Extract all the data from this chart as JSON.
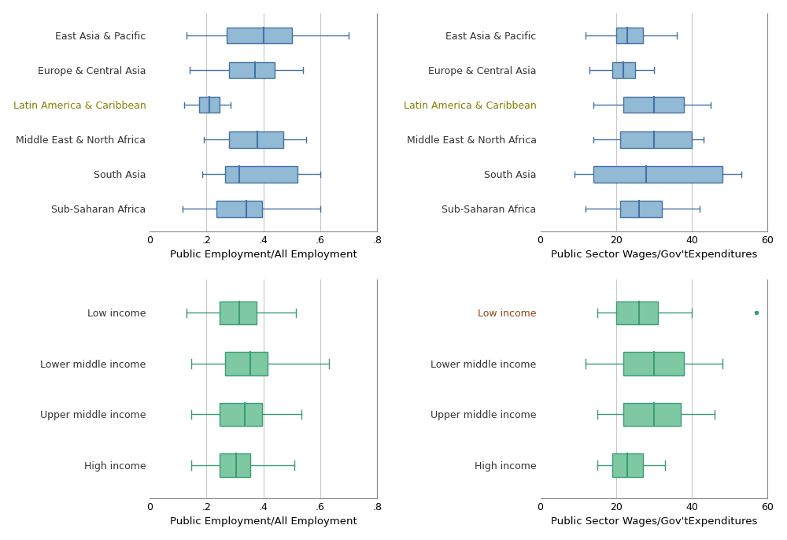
{
  "top_left": {
    "categories": [
      "East Asia & Pacific",
      "Europe & Central Asia",
      "Latin America & Caribbean",
      "Middle East & North Africa",
      "South Asia",
      "Sub-Saharan Africa"
    ],
    "boxes": [
      {
        "whislo": 0.13,
        "q1": 0.27,
        "med": 0.4,
        "q3": 0.5,
        "whishi": 0.7,
        "fliers": []
      },
      {
        "whislo": 0.14,
        "q1": 0.28,
        "med": 0.37,
        "q3": 0.44,
        "whishi": 0.54,
        "fliers": []
      },
      {
        "whislo": 0.12,
        "q1": 0.175,
        "med": 0.21,
        "q3": 0.245,
        "whishi": 0.285,
        "fliers": []
      },
      {
        "whislo": 0.19,
        "q1": 0.28,
        "med": 0.38,
        "q3": 0.47,
        "whishi": 0.55,
        "fliers": []
      },
      {
        "whislo": 0.185,
        "q1": 0.265,
        "med": 0.315,
        "q3": 0.52,
        "whishi": 0.6,
        "fliers": []
      },
      {
        "whislo": 0.115,
        "q1": 0.235,
        "med": 0.34,
        "q3": 0.395,
        "whishi": 0.6,
        "fliers": []
      }
    ],
    "xlabel": "Public Employment/All Employment",
    "xlim": [
      0,
      0.8
    ],
    "xticks": [
      0,
      0.2,
      0.4,
      0.6,
      0.8
    ],
    "xticklabels": [
      "0",
      ".2",
      ".4",
      ".6",
      ".8"
    ],
    "color": "#92BAD4",
    "edgecolor": "#4472A8",
    "mediancolor": "#4472A8",
    "special_label_idx": 2,
    "special_label_color": "#808000"
  },
  "top_right": {
    "categories": [
      "East Asia & Pacific",
      "Europe & Central Asia",
      "Latin America & Caribbean",
      "Middle East & North Africa",
      "South Asia",
      "Sub-Saharan Africa"
    ],
    "boxes": [
      {
        "whislo": 12,
        "q1": 20,
        "med": 23,
        "q3": 27,
        "whishi": 36,
        "fliers": []
      },
      {
        "whislo": 13,
        "q1": 19,
        "med": 22,
        "q3": 25,
        "whishi": 30,
        "fliers": []
      },
      {
        "whislo": 14,
        "q1": 22,
        "med": 30,
        "q3": 38,
        "whishi": 45,
        "fliers": []
      },
      {
        "whislo": 14,
        "q1": 21,
        "med": 30,
        "q3": 40,
        "whishi": 43,
        "fliers": []
      },
      {
        "whislo": 9,
        "q1": 14,
        "med": 28,
        "q3": 48,
        "whishi": 53,
        "fliers": []
      },
      {
        "whislo": 12,
        "q1": 21,
        "med": 26,
        "q3": 32,
        "whishi": 42,
        "fliers": []
      }
    ],
    "xlabel": "Public Sector Wages/Gov'tExpenditures",
    "xlim": [
      0,
      60
    ],
    "xticks": [
      0,
      20,
      40,
      60
    ],
    "xticklabels": [
      "0",
      "20",
      "40",
      "60"
    ],
    "color": "#92BAD4",
    "edgecolor": "#4472A8",
    "mediancolor": "#4472A8",
    "special_label_idx": 2,
    "special_label_color": "#808000"
  },
  "bottom_left": {
    "categories": [
      "Low income",
      "Lower middle income",
      "Upper middle income",
      "High income"
    ],
    "boxes": [
      {
        "whislo": 0.13,
        "q1": 0.245,
        "med": 0.315,
        "q3": 0.375,
        "whishi": 0.515,
        "fliers": []
      },
      {
        "whislo": 0.145,
        "q1": 0.265,
        "med": 0.355,
        "q3": 0.415,
        "whishi": 0.63,
        "fliers": []
      },
      {
        "whislo": 0.145,
        "q1": 0.245,
        "med": 0.335,
        "q3": 0.395,
        "whishi": 0.535,
        "fliers": []
      },
      {
        "whislo": 0.145,
        "q1": 0.245,
        "med": 0.305,
        "q3": 0.355,
        "whishi": 0.51,
        "fliers": []
      }
    ],
    "xlabel": "Public Employment/All Employment",
    "xlim": [
      0,
      0.8
    ],
    "xticks": [
      0,
      0.2,
      0.4,
      0.6,
      0.8
    ],
    "xticklabels": [
      "0",
      ".2",
      ".4",
      ".6",
      ".8"
    ],
    "color": "#7EC8A4",
    "edgecolor": "#3A9E72",
    "mediancolor": "#3A9E72",
    "special_label_idx": -1,
    "special_label_color": "#000000"
  },
  "bottom_right": {
    "categories": [
      "Low income",
      "Lower middle income",
      "Upper middle income",
      "High income"
    ],
    "boxes": [
      {
        "whislo": 15,
        "q1": 20,
        "med": 26,
        "q3": 31,
        "whishi": 40,
        "fliers": [
          57
        ]
      },
      {
        "whislo": 12,
        "q1": 22,
        "med": 30,
        "q3": 38,
        "whishi": 48,
        "fliers": []
      },
      {
        "whislo": 15,
        "q1": 22,
        "med": 30,
        "q3": 37,
        "whishi": 46,
        "fliers": []
      },
      {
        "whislo": 15,
        "q1": 19,
        "med": 23,
        "q3": 27,
        "whishi": 33,
        "fliers": []
      }
    ],
    "xlabel": "Public Sector Wages/Gov'tExpenditures",
    "xlim": [
      0,
      60
    ],
    "xticks": [
      0,
      20,
      40,
      60
    ],
    "xticklabels": [
      "0",
      "20",
      "40",
      "60"
    ],
    "color": "#7EC8A4",
    "edgecolor": "#3A9E72",
    "mediancolor": "#3A9E72",
    "special_label_idx": 0,
    "special_label_color": "#8B4513"
  },
  "background_color": "#FFFFFF",
  "plot_bg_color": "#FFFFFF",
  "grid_color": "#C8C8C8",
  "fontsize_label": 9,
  "fontsize_xlabel": 9.5,
  "fontsize_tick": 9
}
